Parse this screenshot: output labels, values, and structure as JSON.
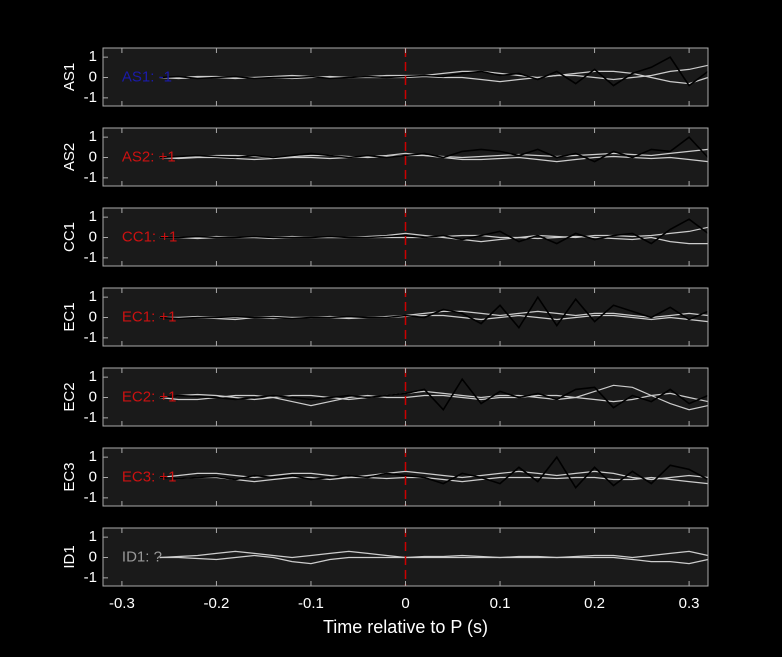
{
  "chart_data": [
    {
      "type": "line",
      "ylabel": "AS1",
      "label": "AS1: -1",
      "label_color": "#1a1aaa",
      "x": [
        -0.26,
        -0.24,
        -0.22,
        -0.2,
        -0.18,
        -0.16,
        -0.14,
        -0.12,
        -0.1,
        -0.08,
        -0.06,
        -0.04,
        -0.02,
        0,
        0.02,
        0.04,
        0.06,
        0.08,
        0.1,
        0.12,
        0.14,
        0.16,
        0.18,
        0.2,
        0.22,
        0.24,
        0.26,
        0.28,
        0.3,
        0.32
      ],
      "series": [
        {
          "color": "#cccccc",
          "values": [
            0,
            0,
            0.05,
            0.05,
            0,
            0,
            0.05,
            0.1,
            0.05,
            0,
            0,
            0.05,
            0.1,
            0.1,
            0.1,
            0.2,
            0.3,
            0.3,
            0.2,
            0.1,
            0,
            0.1,
            0.2,
            0.3,
            0.3,
            0.2,
            0,
            -0.2,
            -0.3,
            0
          ]
        },
        {
          "color": "#cccccc",
          "values": [
            0,
            -0.05,
            0,
            0,
            -0.05,
            0,
            0,
            -0.05,
            0,
            0.05,
            0,
            0,
            0,
            0,
            0.05,
            0,
            0,
            -0.1,
            -0.2,
            -0.1,
            0,
            0.1,
            0.1,
            0,
            -0.1,
            0,
            0.1,
            0.3,
            0.4,
            0.6
          ]
        },
        {
          "color": "#000000",
          "values": [
            0,
            0.05,
            -0.05,
            0,
            0.05,
            -0.05,
            0,
            0,
            0.05,
            -0.05,
            0,
            0.05,
            0,
            0.05,
            0.1,
            0.05,
            0.2,
            0.3,
            0.1,
            0.2,
            -0.1,
            0.3,
            -0.3,
            0.4,
            -0.4,
            0.2,
            0.5,
            1.0,
            -0.4,
            0.3
          ]
        }
      ],
      "vline": {
        "x": 0,
        "color": "#cc0000"
      },
      "xlim": [
        -0.32,
        0.32
      ],
      "xticks": [
        -0.3,
        -0.2,
        -0.1,
        0,
        0.1,
        0.2,
        0.3
      ],
      "ylim": [
        -1.4,
        1.45
      ],
      "yticks": [
        -1,
        0,
        1
      ]
    },
    {
      "type": "line",
      "ylabel": "AS2",
      "label": "AS2: +1",
      "label_color": "#cc1111",
      "x": [
        -0.26,
        -0.24,
        -0.22,
        -0.2,
        -0.18,
        -0.16,
        -0.14,
        -0.12,
        -0.1,
        -0.08,
        -0.06,
        -0.04,
        -0.02,
        0,
        0.02,
        0.04,
        0.06,
        0.08,
        0.1,
        0.12,
        0.14,
        0.16,
        0.18,
        0.2,
        0.22,
        0.24,
        0.26,
        0.28,
        0.3,
        0.32
      ],
      "series": [
        {
          "color": "#cccccc",
          "values": [
            0,
            0,
            0.05,
            0.1,
            0.1,
            0.05,
            0,
            0.05,
            0.1,
            0.1,
            0.05,
            0,
            0.05,
            0.1,
            0.1,
            0.05,
            0,
            0.05,
            0.1,
            0.15,
            0.1,
            0.05,
            0.1,
            0.15,
            0.2,
            0.15,
            0.1,
            0.2,
            0.3,
            0.4
          ]
        },
        {
          "color": "#cccccc",
          "values": [
            0,
            -0.05,
            0,
            0,
            -0.05,
            -0.1,
            -0.05,
            0,
            0,
            -0.05,
            0,
            0.05,
            0.1,
            0.2,
            0.1,
            0,
            -0.1,
            -0.1,
            -0.05,
            0,
            -0.1,
            -0.2,
            -0.1,
            0,
            0.05,
            0,
            -0.05,
            0,
            -0.1,
            -0.2
          ]
        },
        {
          "color": "#000000",
          "values": [
            0,
            0.05,
            0.1,
            0.05,
            0,
            0.1,
            0,
            0.1,
            0.2,
            0.1,
            0,
            0.1,
            0,
            0.1,
            0.2,
            0,
            0.3,
            0.4,
            0.3,
            0.1,
            0.4,
            0,
            0.2,
            -0.2,
            0.3,
            0,
            0.4,
            0.3,
            1.0,
            0
          ]
        }
      ],
      "vline": {
        "x": 0,
        "color": "#cc0000"
      },
      "xlim": [
        -0.32,
        0.32
      ],
      "xticks": [
        -0.3,
        -0.2,
        -0.1,
        0,
        0.1,
        0.2,
        0.3
      ],
      "ylim": [
        -1.4,
        1.45
      ],
      "yticks": [
        -1,
        0,
        1
      ]
    },
    {
      "type": "line",
      "ylabel": "CC1",
      "label": "CC1: +1",
      "label_color": "#cc1111",
      "x": [
        -0.26,
        -0.24,
        -0.22,
        -0.2,
        -0.18,
        -0.16,
        -0.14,
        -0.12,
        -0.1,
        -0.08,
        -0.06,
        -0.04,
        -0.02,
        0,
        0.02,
        0.04,
        0.06,
        0.08,
        0.1,
        0.12,
        0.14,
        0.16,
        0.18,
        0.2,
        0.22,
        0.24,
        0.26,
        0.28,
        0.3,
        0.32
      ],
      "series": [
        {
          "color": "#cccccc",
          "values": [
            0,
            0,
            0,
            0.05,
            0,
            0,
            0,
            0.05,
            0,
            0,
            0,
            0.05,
            0.1,
            0.2,
            0.1,
            0,
            -0.1,
            -0.2,
            -0.1,
            0,
            0.1,
            0.05,
            0,
            0.1,
            0.1,
            0.05,
            0.1,
            0.2,
            0.3,
            0.5
          ]
        },
        {
          "color": "#cccccc",
          "values": [
            0,
            0,
            -0.05,
            0,
            0,
            0,
            -0.05,
            0,
            0,
            0,
            0,
            0,
            0,
            0,
            0,
            0.05,
            0.1,
            0.1,
            0,
            0,
            -0.05,
            0,
            0.05,
            0,
            -0.05,
            -0.1,
            0,
            -0.2,
            -0.3,
            -0.3
          ]
        },
        {
          "color": "#000000",
          "values": [
            0,
            0,
            0.05,
            0,
            0,
            0.05,
            0,
            0,
            0,
            0.05,
            0,
            0,
            0.05,
            0.1,
            0,
            0.1,
            -0.1,
            0.1,
            0.3,
            -0.2,
            0.1,
            -0.3,
            0.2,
            -0.1,
            0.1,
            0.2,
            -0.3,
            0.4,
            0.9,
            0.2
          ]
        }
      ],
      "vline": {
        "x": 0,
        "color": "#cc0000"
      },
      "xlim": [
        -0.32,
        0.32
      ],
      "xticks": [
        -0.3,
        -0.2,
        -0.1,
        0,
        0.1,
        0.2,
        0.3
      ],
      "ylim": [
        -1.4,
        1.45
      ],
      "yticks": [
        -1,
        0,
        1
      ]
    },
    {
      "type": "line",
      "ylabel": "EC1",
      "label": "EC1: +1",
      "label_color": "#cc1111",
      "x": [
        -0.26,
        -0.24,
        -0.22,
        -0.2,
        -0.18,
        -0.16,
        -0.14,
        -0.12,
        -0.1,
        -0.08,
        -0.06,
        -0.04,
        -0.02,
        0,
        0.02,
        0.04,
        0.06,
        0.08,
        0.1,
        0.12,
        0.14,
        0.16,
        0.18,
        0.2,
        0.22,
        0.24,
        0.26,
        0.28,
        0.3,
        0.32
      ],
      "series": [
        {
          "color": "#cccccc",
          "values": [
            0,
            0,
            0,
            -0.05,
            -0.1,
            0,
            0.05,
            0,
            0,
            0,
            -0.05,
            0,
            0.05,
            0.1,
            0.2,
            0.3,
            0.3,
            0.2,
            0.1,
            0.2,
            0.3,
            0.2,
            0.1,
            0.2,
            0.2,
            0.1,
            0,
            0.1,
            0.2,
            0.1
          ]
        },
        {
          "color": "#cccccc",
          "values": [
            0,
            0,
            0.05,
            0,
            0,
            0,
            -0.05,
            0,
            0,
            0.05,
            0,
            0,
            0,
            0.05,
            0.1,
            0.1,
            0,
            -0.1,
            0,
            0.1,
            0,
            -0.1,
            0,
            0.1,
            0.1,
            0,
            -0.1,
            0,
            -0.1,
            -0.2
          ]
        },
        {
          "color": "#000000",
          "values": [
            0,
            -0.05,
            0,
            0,
            0.05,
            0,
            0,
            -0.05,
            0,
            0,
            0.05,
            0,
            0,
            0.1,
            0,
            0.4,
            0.2,
            -0.3,
            0.6,
            -0.5,
            1.0,
            -0.4,
            0.9,
            -0.2,
            0.6,
            0.3,
            0,
            0.5,
            -0.1,
            0.3
          ]
        }
      ],
      "vline": {
        "x": 0,
        "color": "#cc0000"
      },
      "xlim": [
        -0.32,
        0.32
      ],
      "xticks": [
        -0.3,
        -0.2,
        -0.1,
        0,
        0.1,
        0.2,
        0.3
      ],
      "ylim": [
        -1.4,
        1.45
      ],
      "yticks": [
        -1,
        0,
        1
      ]
    },
    {
      "type": "line",
      "ylabel": "EC2",
      "label": "EC2: +1",
      "label_color": "#cc1111",
      "x": [
        -0.26,
        -0.24,
        -0.22,
        -0.2,
        -0.18,
        -0.16,
        -0.14,
        -0.12,
        -0.1,
        -0.08,
        -0.06,
        -0.04,
        -0.02,
        0,
        0.02,
        0.04,
        0.06,
        0.08,
        0.1,
        0.12,
        0.14,
        0.16,
        0.18,
        0.2,
        0.22,
        0.24,
        0.26,
        0.28,
        0.3,
        0.32
      ],
      "series": [
        {
          "color": "#cccccc",
          "values": [
            0,
            0.1,
            0.15,
            0.1,
            0,
            -0.1,
            0,
            0.1,
            0.1,
            0,
            -0.1,
            0,
            0.1,
            0.2,
            0.3,
            0.2,
            0.1,
            0,
            0.1,
            0.1,
            0,
            -0.1,
            0,
            0.3,
            0.6,
            0.5,
            0.1,
            -0.3,
            -0.6,
            -0.4
          ]
        },
        {
          "color": "#cccccc",
          "values": [
            0,
            -0.1,
            -0.1,
            0,
            0.1,
            0.1,
            0,
            -0.2,
            -0.4,
            -0.2,
            0,
            0.1,
            0,
            0,
            0.1,
            0.1,
            0,
            -0.1,
            0,
            0,
            0.1,
            0.1,
            0,
            -0.1,
            -0.2,
            -0.1,
            0.1,
            0.2,
            0,
            -0.2
          ]
        },
        {
          "color": "#000000",
          "values": [
            0,
            0.1,
            0.05,
            0,
            -0.1,
            0,
            0.1,
            0,
            -0.1,
            0,
            0.1,
            0,
            0.1,
            0.2,
            0.4,
            -0.6,
            0.9,
            -0.3,
            0.3,
            0,
            0.2,
            -0.1,
            0.4,
            0.5,
            -0.5,
            0.1,
            -0.2,
            0.4,
            -0.3,
            0.1
          ]
        }
      ],
      "vline": {
        "x": 0,
        "color": "#cc0000"
      },
      "xlim": [
        -0.32,
        0.32
      ],
      "xticks": [
        -0.3,
        -0.2,
        -0.1,
        0,
        0.1,
        0.2,
        0.3
      ],
      "ylim": [
        -1.4,
        1.45
      ],
      "yticks": [
        -1,
        0,
        1
      ]
    },
    {
      "type": "line",
      "ylabel": "EC3",
      "label": "EC3: +1",
      "label_color": "#cc1111",
      "x": [
        -0.26,
        -0.24,
        -0.22,
        -0.2,
        -0.18,
        -0.16,
        -0.14,
        -0.12,
        -0.1,
        -0.08,
        -0.06,
        -0.04,
        -0.02,
        0,
        0.02,
        0.04,
        0.06,
        0.08,
        0.1,
        0.12,
        0.14,
        0.16,
        0.18,
        0.2,
        0.22,
        0.24,
        0.26,
        0.28,
        0.3,
        0.32
      ],
      "series": [
        {
          "color": "#cccccc",
          "values": [
            0,
            0.1,
            0.2,
            0.2,
            0.1,
            0,
            0.1,
            0.2,
            0.2,
            0.1,
            0,
            0.1,
            0.2,
            0.3,
            0.2,
            0.1,
            0,
            0.1,
            0.2,
            0.3,
            0.2,
            0.1,
            0.2,
            0.3,
            0.2,
            0,
            -0.1,
            0,
            0.1,
            0
          ]
        },
        {
          "color": "#cccccc",
          "values": [
            0,
            -0.05,
            0,
            0,
            -0.1,
            -0.2,
            -0.1,
            0,
            0,
            -0.1,
            0,
            0,
            -0.05,
            0,
            0,
            -0.1,
            -0.2,
            -0.1,
            0,
            0,
            0,
            -0.05,
            0,
            0,
            -0.1,
            -0.1,
            0,
            -0.1,
            -0.2,
            -0.3
          ]
        },
        {
          "color": "#000000",
          "values": [
            0,
            -0.05,
            0,
            0.05,
            -0.1,
            0.1,
            0,
            0.1,
            -0.1,
            0,
            0.1,
            0,
            0.2,
            0.1,
            0,
            -0.3,
            0.2,
            0,
            -0.3,
            0.5,
            -0.2,
            1.0,
            -0.5,
            0.5,
            -0.4,
            0.3,
            -0.3,
            0.6,
            0.4,
            -0.1
          ]
        }
      ],
      "vline": {
        "x": 0,
        "color": "#cc0000"
      },
      "xlim": [
        -0.32,
        0.32
      ],
      "xticks": [
        -0.3,
        -0.2,
        -0.1,
        0,
        0.1,
        0.2,
        0.3
      ],
      "ylim": [
        -1.4,
        1.45
      ],
      "yticks": [
        -1,
        0,
        1
      ]
    },
    {
      "type": "line",
      "ylabel": "ID1",
      "label": "ID1: ?",
      "label_color": "#999999",
      "x": [
        -0.26,
        -0.24,
        -0.22,
        -0.2,
        -0.18,
        -0.16,
        -0.14,
        -0.12,
        -0.1,
        -0.08,
        -0.06,
        -0.04,
        -0.02,
        0,
        0.02,
        0.04,
        0.06,
        0.08,
        0.1,
        0.12,
        0.14,
        0.16,
        0.18,
        0.2,
        0.22,
        0.24,
        0.26,
        0.28,
        0.3,
        0.32
      ],
      "series": [
        {
          "color": "#cccccc",
          "values": [
            0,
            0.05,
            0.1,
            0.2,
            0.3,
            0.2,
            0.1,
            0,
            0.1,
            0.2,
            0.3,
            0.2,
            0.1,
            0,
            0.05,
            0.05,
            0.1,
            0.05,
            0,
            0.05,
            0.05,
            0,
            0.05,
            0.1,
            0.1,
            0,
            0.1,
            0.2,
            0.3,
            0.1
          ]
        },
        {
          "color": "#cccccc",
          "values": [
            0,
            0,
            -0.05,
            -0.1,
            0,
            0.1,
            0,
            -0.2,
            -0.3,
            -0.1,
            0,
            0,
            0,
            0,
            0,
            0,
            0,
            0,
            0,
            0,
            0,
            0,
            0,
            0,
            0,
            -0.1,
            -0.2,
            -0.2,
            -0.3,
            -0.1
          ]
        }
      ],
      "vline": {
        "x": 0,
        "color": "#cc0000"
      },
      "xlim": [
        -0.32,
        0.32
      ],
      "xticks": [
        -0.3,
        -0.2,
        -0.1,
        0,
        0.1,
        0.2,
        0.3
      ],
      "ylim": [
        -1.4,
        1.45
      ],
      "yticks": [
        -1,
        0,
        1
      ],
      "xlabel": "Time relative to P (s)"
    }
  ]
}
